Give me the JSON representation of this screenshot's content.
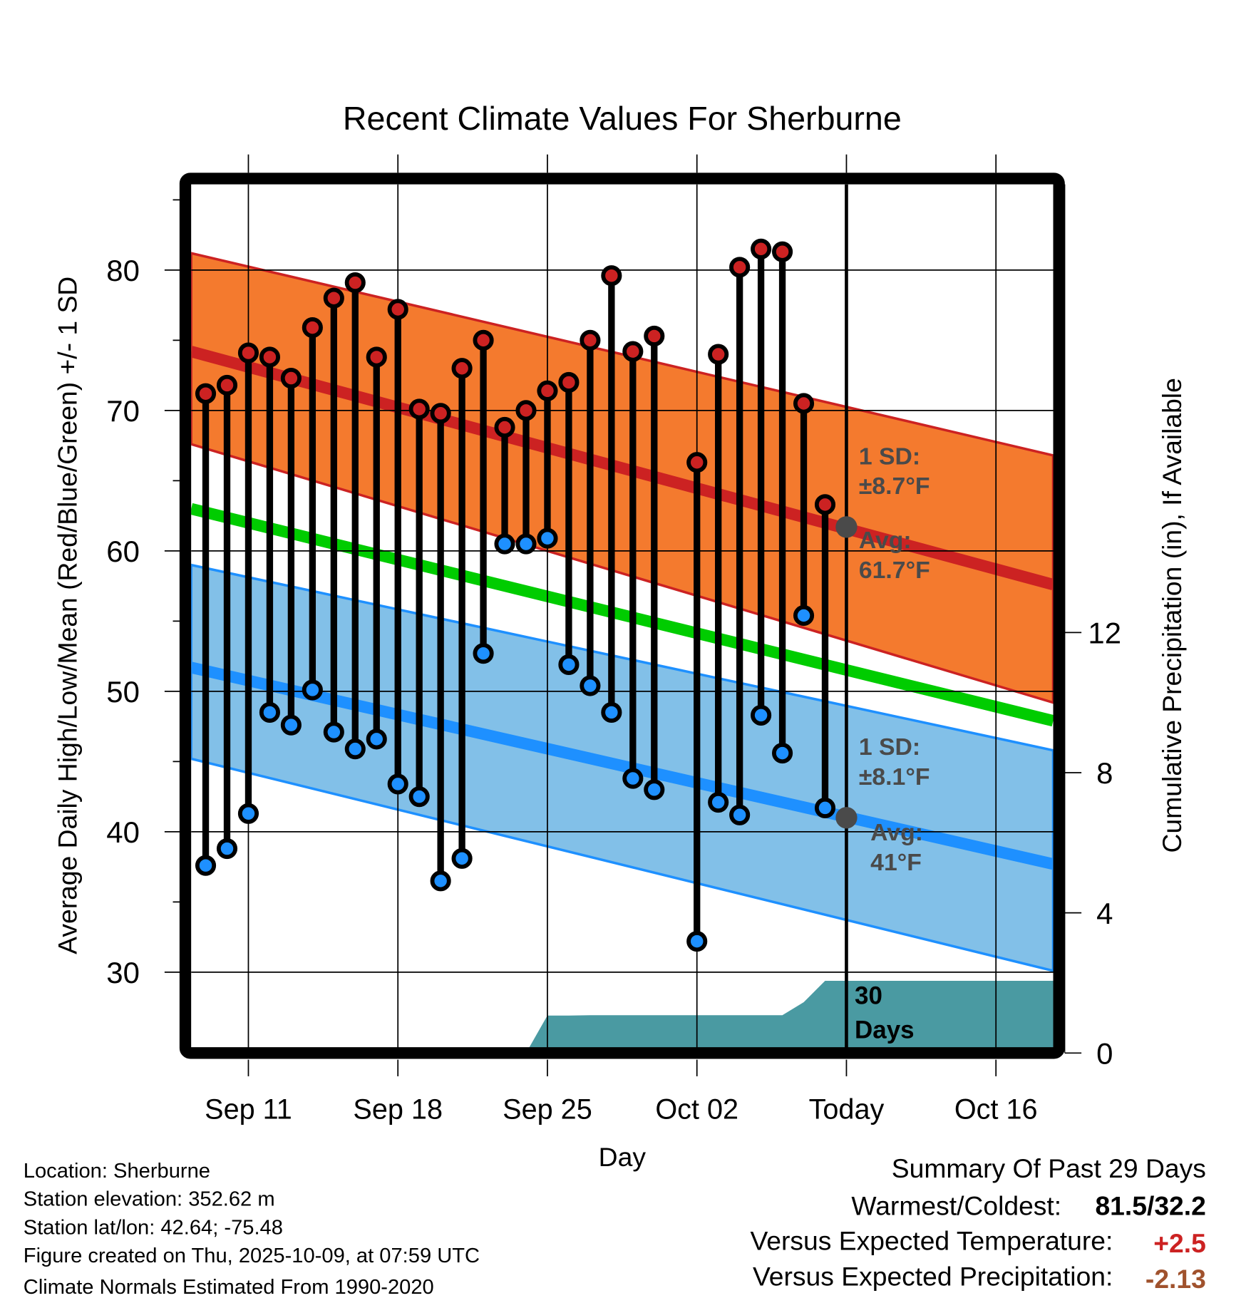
{
  "chart_data": {
    "type": "line",
    "title": "Recent Climate Values For Sherburne",
    "xlabel": "Day",
    "ylabel": "Average Daily High/Low/Mean (Red/Blue/Green) +/- 1 SD",
    "y2label": "Cumulative Precipitation (in), If Available",
    "xlim_day_of_sep": [
      8.32,
      48.68
    ],
    "ylim": [
      24.6,
      86.1
    ],
    "y2lim": [
      0,
      20
    ],
    "grid": true,
    "xticks": [
      {
        "day": 11,
        "label": "Sep 11"
      },
      {
        "day": 18,
        "label": "Sep 18"
      },
      {
        "day": 25,
        "label": "Sep 25"
      },
      {
        "day": 32,
        "label": "Oct 02"
      },
      {
        "day": 39,
        "label": "Today"
      },
      {
        "day": 46,
        "label": "Oct 16"
      }
    ],
    "yticks": [
      "30",
      "40",
      "50",
      "60",
      "70",
      "80"
    ],
    "y2ticks": [
      "0",
      "4",
      "8",
      "12"
    ],
    "today_day": 39,
    "days": [
      9,
      10,
      11,
      12,
      13,
      14,
      15,
      16,
      17,
      18,
      19,
      20,
      21,
      22,
      23,
      24,
      25,
      26,
      27,
      28,
      29,
      30,
      32,
      33,
      34,
      35,
      36,
      37,
      38
    ],
    "series": [
      {
        "name": "Daily High",
        "color": "#cc2222",
        "values": [
          71.2,
          71.8,
          74.1,
          73.8,
          72.3,
          75.9,
          78.0,
          79.1,
          73.8,
          77.2,
          70.1,
          69.8,
          73.0,
          75.0,
          68.8,
          70.0,
          71.4,
          72.0,
          75.0,
          79.6,
          74.2,
          75.3,
          66.3,
          74.0,
          80.2,
          81.5,
          81.3,
          70.5,
          63.3
        ]
      },
      {
        "name": "Daily Low",
        "color": "#1e90ff",
        "values": [
          37.6,
          38.8,
          41.3,
          48.5,
          47.6,
          50.1,
          47.1,
          45.9,
          46.6,
          43.4,
          42.5,
          36.5,
          38.1,
          52.7,
          60.5,
          60.5,
          60.9,
          51.9,
          50.4,
          48.5,
          43.8,
          43.0,
          32.2,
          42.1,
          41.2,
          48.3,
          45.6,
          55.4,
          41.7
        ]
      }
    ],
    "normals": {
      "high_mean": [
        74.2,
        57.6
      ],
      "high_upper": [
        81.2,
        66.8
      ],
      "high_lower": [
        67.6,
        49.2
      ],
      "low_mean": [
        51.7,
        37.7
      ],
      "low_upper": [
        59.0,
        45.8
      ],
      "low_lower": [
        45.2,
        30.1
      ],
      "mean": [
        63.0,
        47.9
      ]
    },
    "precip": {
      "days": [
        8.32,
        24,
        25,
        26,
        27,
        28,
        29,
        30,
        31,
        32,
        33,
        34,
        35,
        36,
        37,
        38,
        48.68
      ],
      "values": [
        0,
        0,
        1.07,
        1.07,
        1.08,
        1.08,
        1.08,
        1.08,
        1.08,
        1.08,
        1.08,
        1.08,
        1.08,
        1.08,
        1.45,
        2.06,
        2.06
      ],
      "label1": "30",
      "label2": "Days"
    },
    "annotations": {
      "high_sd_1": "1 SD:",
      "high_sd_2": "±8.7°F",
      "high_avg_1": "Avg:",
      "high_avg_2": "61.7°F",
      "low_sd_1": "1 SD:",
      "low_sd_2": "±8.1°F",
      "low_avg_1": "Avg:",
      "low_avg_2": "41°F",
      "today_high_avg": 61.7,
      "today_low_avg": 41
    },
    "colors": {
      "high_band": "#f47a2e",
      "high_line": "#cc2222",
      "low_band": "#82c0e8",
      "low_line": "#1e90ff",
      "mean_line": "#00cc00",
      "precip": "#4a9aa2",
      "marker_today": "#4a4a4a"
    }
  },
  "info": [
    "Location: Sherburne",
    "Station elevation: 352.62 m",
    "Station lat/lon: 42.64; -75.48",
    "Figure created on Thu, 2025-10-09, at 07:59 UTC",
    "Climate Normals Estimated From 1990-2020"
  ],
  "summary": {
    "title": "Summary Of Past 29 Days",
    "warm_cold_label": "Warmest/Coldest:",
    "warm_cold_value": "81.5/32.2",
    "temp_label": "Versus Expected Temperature:",
    "temp_value": "+2.5",
    "temp_color": "#cc2222",
    "precip_label": "Versus Expected Precipitation:",
    "precip_value": "-2.13",
    "precip_color": "#a0522d"
  }
}
